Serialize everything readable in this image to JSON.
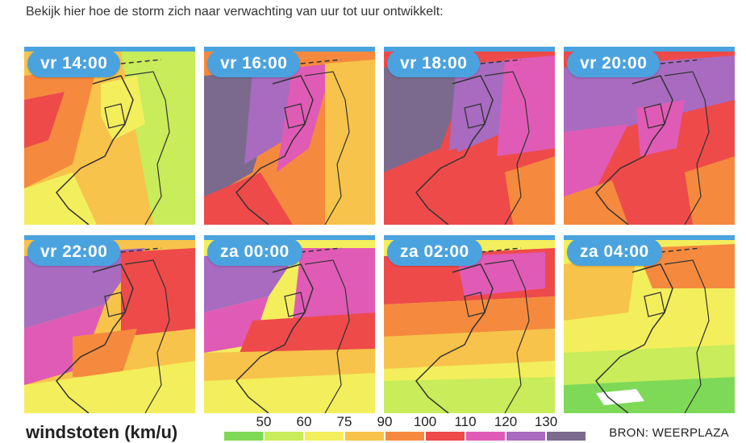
{
  "intro_text": "Bekijk hier hoe de storm zich naar verwachting van uur tot uur ontwikkelt:",
  "panels": [
    {
      "label": "vr 14:00"
    },
    {
      "label": "vr 16:00"
    },
    {
      "label": "vr 18:00"
    },
    {
      "label": "vr 20:00"
    },
    {
      "label": "vr 22:00"
    },
    {
      "label": "za 00:00"
    },
    {
      "label": "za 02:00"
    },
    {
      "label": "za 04:00"
    }
  ],
  "legend": {
    "title": "windstoten (km/u)",
    "ticks": [
      "50",
      "60",
      "75",
      "90",
      "100",
      "110",
      "120",
      "130"
    ],
    "colors": [
      "#7ed957",
      "#c8ec5a",
      "#f3ee5c",
      "#f7c34a",
      "#f58a3e",
      "#ee4a4a",
      "#e05bb6",
      "#a86bc0",
      "#7c6a8e"
    ]
  },
  "source": "BRON: WEERPLAZA",
  "colors": {
    "accent": "#4aa3df"
  }
}
